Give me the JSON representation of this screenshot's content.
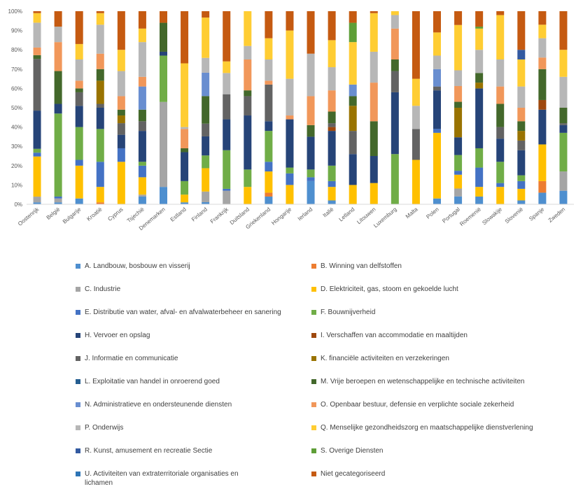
{
  "chart_data": {
    "type": "bar",
    "stacked": true,
    "normalized": true,
    "ylim": [
      0,
      100
    ],
    "yticks": [
      "0%",
      "10%",
      "20%",
      "30%",
      "40%",
      "50%",
      "60%",
      "70%",
      "80%",
      "90%",
      "100%"
    ],
    "grid": false,
    "legend_position": "bottom",
    "categories": [
      "Oostenrijk",
      "België",
      "Bulgarije",
      "Kroatië",
      "Cyprus",
      "Tsjechië",
      "Denemarken",
      "Estland",
      "Finland",
      "Frankrijk",
      "Duitsland",
      "Griekenland",
      "Hongarije",
      "Ierland",
      "Italië",
      "Letland",
      "Litouwen",
      "Luxemburg",
      "Malta",
      "Polen",
      "Portugal",
      "Roemenië",
      "Slowakije",
      "Slovenië",
      "Spanje",
      "Zweden"
    ],
    "series": [
      {
        "name": "A. Landbouw, bosbouw en visserij",
        "color": "#4e8fcf",
        "values": [
          1,
          1,
          3,
          0,
          0,
          4,
          9,
          1,
          1,
          0,
          0,
          4,
          0,
          12,
          2,
          0,
          0,
          0,
          0,
          3,
          4,
          4,
          0,
          2,
          6,
          7
        ]
      },
      {
        "name": "B. Winning van delfstoffen",
        "color": "#ed7d31",
        "values": [
          0,
          0,
          0,
          1,
          0,
          0,
          0,
          0,
          0,
          0,
          0,
          2,
          0,
          0,
          0,
          0,
          0,
          0,
          0,
          0,
          0,
          0,
          0,
          0,
          6,
          0
        ]
      },
      {
        "name": "C. Industrie",
        "color": "#a5a5a5",
        "values": [
          3,
          2,
          0,
          0,
          0,
          1,
          44,
          0,
          5,
          7,
          0,
          0,
          0,
          0,
          0,
          0,
          0,
          0,
          0,
          0,
          4,
          0,
          0,
          0,
          0,
          10
        ]
      },
      {
        "name": "D. Elektriciteit, gas, stoom en gekoelde lucht",
        "color": "#ffc000",
        "values": [
          21,
          0,
          17,
          8,
          22,
          9,
          0,
          4,
          11,
          0,
          9,
          11,
          10,
          0,
          7,
          10,
          11,
          0,
          23,
          34,
          7,
          5,
          9,
          6,
          19,
          0
        ]
      },
      {
        "name": "E. Distributie van water, afval- en afvalwaterbeheer en sanering",
        "color": "#4472c4",
        "values": [
          2,
          1,
          3,
          13,
          7,
          6,
          0,
          0,
          0,
          1,
          0,
          5,
          6,
          2,
          3,
          0,
          0,
          0,
          0,
          2,
          2,
          10,
          2,
          4,
          0,
          0
        ]
      },
      {
        "name": "F. Bouwnijverheid",
        "color": "#70ad47",
        "values": [
          2,
          43,
          17,
          17,
          0,
          2,
          24,
          7,
          6,
          20,
          9,
          16,
          3,
          4,
          8,
          0,
          0,
          26,
          0,
          0,
          8,
          10,
          11,
          3,
          0,
          20
        ]
      },
      {
        "name": "H. Vervoer en opslag",
        "color": "#264478",
        "values": [
          20,
          5,
          11,
          11,
          7,
          16,
          2,
          15,
          9,
          16,
          28,
          5,
          25,
          17,
          18,
          16,
          14,
          32,
          0,
          20,
          9,
          31,
          12,
          13,
          18,
          4
        ]
      },
      {
        "name": "I. Verschaffen van accommodatie en maaltijden",
        "color": "#9e480e",
        "values": [
          0,
          0,
          0,
          0,
          0,
          0,
          0,
          0,
          0,
          0,
          0,
          0,
          0,
          0,
          2,
          0,
          0,
          0,
          0,
          0,
          0,
          0,
          0,
          0,
          5,
          0
        ]
      },
      {
        "name": "J. Informatie en communicatie",
        "color": "#636363",
        "values": [
          27,
          0,
          7,
          2,
          6,
          5,
          0,
          0,
          6,
          13,
          10,
          19,
          0,
          0,
          2,
          12,
          0,
          11,
          16,
          2,
          0,
          0,
          6,
          5,
          0,
          1
        ]
      },
      {
        "name": "K. financiële activiteiten en verzekeringen",
        "color": "#997300",
        "values": [
          0,
          0,
          0,
          12,
          4,
          0,
          0,
          0,
          0,
          0,
          0,
          0,
          0,
          0,
          0,
          13,
          0,
          0,
          0,
          0,
          15,
          3,
          0,
          5,
          0,
          0
        ]
      },
      {
        "name": "L. Exploitatie van handel in onroerend goed",
        "color": "#255e91",
        "values": [
          0,
          0,
          0,
          0,
          0,
          0,
          0,
          0,
          0,
          0,
          0,
          0,
          0,
          0,
          0,
          0,
          0,
          0,
          0,
          0,
          0,
          0,
          0,
          0,
          0,
          0
        ]
      },
      {
        "name": "M. Vrije beroepen en wetenschappelijke en technische activiteiten",
        "color": "#43682b",
        "values": [
          2,
          17,
          2,
          6,
          3,
          6,
          15,
          2,
          13,
          0,
          3,
          0,
          0,
          6,
          6,
          5,
          18,
          6,
          0,
          0,
          3,
          5,
          12,
          5,
          16,
          8
        ]
      },
      {
        "name": "N. Administratieve en ondersteunende diensten",
        "color": "#698ed0",
        "values": [
          0,
          0,
          0,
          0,
          0,
          12,
          0,
          0,
          11,
          0,
          0,
          0,
          0,
          0,
          0,
          6,
          0,
          0,
          0,
          9,
          0,
          0,
          0,
          0,
          0,
          0
        ]
      },
      {
        "name": "O. Openbaar bestuur, defensie en verplichte sociale zekerheid",
        "color": "#f1975a",
        "values": [
          4,
          15,
          4,
          8,
          7,
          5,
          0,
          10,
          0,
          0,
          16,
          2,
          2,
          15,
          11,
          0,
          20,
          16,
          0,
          0,
          8,
          0,
          9,
          7,
          6,
          0
        ]
      },
      {
        "name": "P. Onderwijs",
        "color": "#b7b7b7",
        "values": [
          13,
          8,
          11,
          15,
          13,
          18,
          0,
          1,
          7,
          11,
          7,
          11,
          19,
          22,
          12,
          0,
          16,
          7,
          12,
          7,
          8,
          12,
          14,
          11,
          10,
          16
        ]
      },
      {
        "name": "Q. Menselijke gezondheidszorg en maatschappelijke dienstverlening",
        "color": "#ffcd33",
        "values": [
          5,
          0,
          8,
          6,
          11,
          7,
          0,
          33,
          19,
          6,
          18,
          11,
          25,
          0,
          14,
          22,
          20,
          2,
          14,
          12,
          23,
          11,
          23,
          14,
          7,
          14
        ]
      },
      {
        "name": "R. Kunst, amusement en recreatie Sectie",
        "color": "#335aa1",
        "values": [
          0,
          0,
          0,
          0,
          0,
          0,
          0,
          0,
          0,
          0,
          0,
          0,
          0,
          0,
          0,
          0,
          0,
          0,
          0,
          0,
          0,
          0,
          0,
          5,
          0,
          0
        ]
      },
      {
        "name": "S. Overige Diensten",
        "color": "#5e9e37",
        "values": [
          0,
          0,
          0,
          0,
          0,
          0,
          0,
          0,
          0,
          0,
          0,
          0,
          0,
          0,
          0,
          10,
          0,
          0,
          0,
          0,
          0,
          1,
          0,
          0,
          0,
          0
        ]
      },
      {
        "name": "U. Activiteiten van extraterritoriale organisaties en lichamen",
        "color": "#2e75b6",
        "values": [
          0,
          0,
          0,
          0,
          0,
          0,
          0,
          0,
          0,
          0,
          0,
          0,
          0,
          0,
          0,
          0,
          0,
          0,
          0,
          0,
          0,
          0,
          0,
          0,
          0,
          0
        ]
      },
      {
        "name": "Niet gecategoriseerd",
        "color": "#c55a11",
        "values": [
          1,
          8,
          17,
          1,
          20,
          9,
          6,
          27,
          3,
          26,
          0,
          14,
          10,
          22,
          15,
          6,
          1,
          0,
          35,
          11,
          7,
          8,
          2,
          20,
          7,
          20
        ]
      }
    ]
  }
}
